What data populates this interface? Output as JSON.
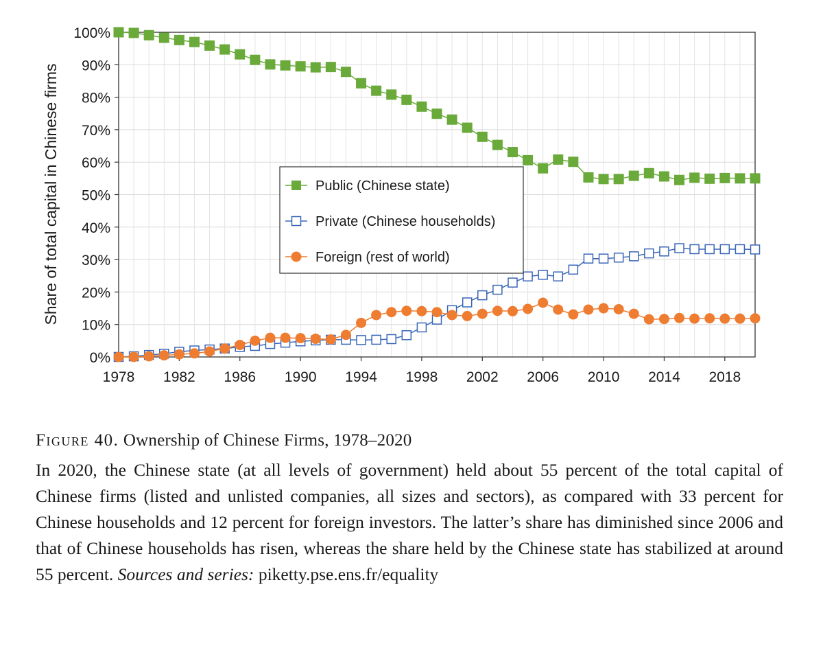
{
  "chart_data": {
    "type": "line",
    "title": "",
    "xlabel": "",
    "ylabel": "Share of total capital in Chinese firms",
    "x": [
      1978,
      1979,
      1980,
      1981,
      1982,
      1983,
      1984,
      1985,
      1986,
      1987,
      1988,
      1989,
      1990,
      1991,
      1992,
      1993,
      1994,
      1995,
      1996,
      1997,
      1998,
      1999,
      2000,
      2001,
      2002,
      2003,
      2004,
      2005,
      2006,
      2007,
      2008,
      2009,
      2010,
      2011,
      2012,
      2013,
      2014,
      2015,
      2016,
      2017,
      2018,
      2019,
      2020
    ],
    "xlim": [
      1978,
      2020
    ],
    "ylim": [
      0,
      100
    ],
    "x_ticks": [
      1978,
      1982,
      1986,
      1990,
      1994,
      1998,
      2002,
      2006,
      2010,
      2014,
      2018
    ],
    "y_ticks": [
      0,
      10,
      20,
      30,
      40,
      50,
      60,
      70,
      80,
      90,
      100
    ],
    "y_tick_labels": [
      "0%",
      "10%",
      "20%",
      "30%",
      "40%",
      "50%",
      "60%",
      "70%",
      "80%",
      "90%",
      "100%"
    ],
    "grid": true,
    "legend_position": "center",
    "series": [
      {
        "name": "Public (Chinese state)",
        "color": "#6aaa3a",
        "marker": "square-filled",
        "values": [
          100,
          99.8,
          99.1,
          98.3,
          97.6,
          97,
          95.9,
          94.7,
          93.2,
          91.5,
          90.1,
          89.8,
          89.5,
          89.2,
          89.3,
          87.8,
          84.3,
          82,
          80.8,
          79.2,
          77.1,
          74.9,
          73.1,
          70.6,
          67.8,
          65.3,
          63.1,
          60.6,
          58.1,
          60.8,
          60.1,
          55.3,
          54.8,
          54.8,
          55.8,
          56.6,
          55.6,
          54.5,
          55.2,
          54.9,
          55.1,
          55,
          55
        ]
      },
      {
        "name": "Private (Chinese households)",
        "color": "#3a66b8",
        "marker": "square-open",
        "values": [
          0,
          0.2,
          0.6,
          1,
          1.6,
          2,
          2.3,
          2.6,
          3.1,
          3.4,
          4,
          4.4,
          4.8,
          5.1,
          5.3,
          5.3,
          5.2,
          5.3,
          5.5,
          6.7,
          9.1,
          11.5,
          14.4,
          16.8,
          19,
          20.7,
          22.9,
          24.8,
          25.3,
          24.8,
          26.9,
          30.3,
          30.3,
          30.6,
          31,
          31.9,
          32.5,
          33.5,
          33.2,
          33.2,
          33.2,
          33.2,
          33.1
        ]
      },
      {
        "name": "Foreign (rest of world)",
        "color": "#ee7d31",
        "marker": "circle-filled",
        "values": [
          0,
          0,
          0.2,
          0.5,
          0.8,
          1.1,
          1.7,
          2.6,
          3.7,
          5,
          5.9,
          5.9,
          5.8,
          5.6,
          5.4,
          6.8,
          10.5,
          12.9,
          13.8,
          14.2,
          14.1,
          13.8,
          12.9,
          12.6,
          13.3,
          14.2,
          14.1,
          14.8,
          16.7,
          14.6,
          13.1,
          14.6,
          15,
          14.7,
          13.3,
          11.6,
          11.7,
          12,
          11.8,
          11.9,
          11.8,
          11.8,
          11.9
        ]
      }
    ]
  },
  "caption": {
    "label": "Figure 40.",
    "title": "Ownership of Chinese Firms, 1978–2020",
    "body": "In 2020, the Chinese state (at all levels of government) held about 55 percent of the total capital of Chinese firms (listed and unlisted companies, all sizes and sectors), as compared with 33 percent for Chinese households and 12 percent for foreign investors. The latter’s share has diminished since 2006 and that of Chinese households has risen, whereas the share held by the Chinese state has stabilized at around 55 percent.",
    "sources_label": "Sources and series:",
    "sources_url": "piketty.pse.ens.fr/equality"
  }
}
